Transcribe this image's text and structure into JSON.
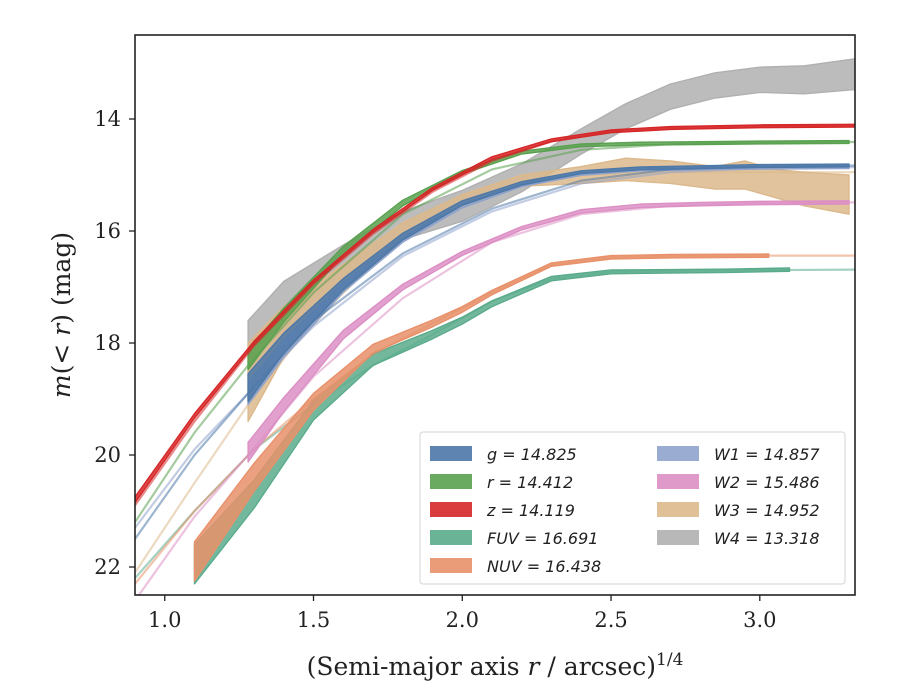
{
  "chart_data": {
    "type": "line",
    "xlabel": "(Semi-major axis r / arcsec)^1/4",
    "xlabel_main": "(Semi-major axis ",
    "xlabel_var": "r",
    "xlabel_rest": " / arcsec)",
    "xlabel_exp": "1/4",
    "ylabel": "m(< r) (mag)",
    "ylabel_m": "m",
    "ylabel_paren_open": "(",
    "ylabel_lt": "< ",
    "ylabel_r": "r",
    "ylabel_paren_close": ")",
    "ylabel_unit": " (mag)",
    "xlim": [
      0.9,
      3.32
    ],
    "ylim": [
      22.5,
      12.5
    ],
    "y_inverted": true,
    "x_ticks": [
      1.0,
      1.5,
      2.0,
      2.5,
      3.0
    ],
    "x_tick_labels": [
      "1.0",
      "1.5",
      "2.0",
      "2.5",
      "3.0"
    ],
    "y_ticks": [
      14,
      16,
      18,
      20,
      22
    ],
    "y_tick_labels": [
      "14",
      "16",
      "18",
      "20",
      "22"
    ],
    "grid": false,
    "legend_position": "lower-right",
    "series": [
      {
        "name": "g",
        "value": "14.825",
        "color": "#4c78a8",
        "x": [
          1.28,
          1.4,
          1.6,
          1.8,
          2.0,
          2.2,
          2.4,
          2.6,
          2.8,
          3.0,
          3.3
        ],
        "y": [
          18.8,
          18.0,
          16.95,
          16.1,
          15.5,
          15.15,
          14.95,
          14.88,
          14.86,
          14.84,
          14.83
        ],
        "width": [
          0.5,
          0.35,
          0.2,
          0.12,
          0.08,
          0.06,
          0.05,
          0.05,
          0.05,
          0.05,
          0.05
        ],
        "model_x": [
          0.9,
          1.1,
          1.28,
          1.5,
          1.8,
          2.1,
          2.4,
          2.7,
          3.0,
          3.32
        ],
        "model_y": [
          21.5,
          20.0,
          18.9,
          17.6,
          16.4,
          15.6,
          15.1,
          14.9,
          14.85,
          14.83
        ]
      },
      {
        "name": "r",
        "value": "14.412",
        "color": "#59a14f",
        "x": [
          1.28,
          1.4,
          1.6,
          1.8,
          2.0,
          2.2,
          2.4,
          2.6,
          2.8,
          3.0,
          3.3
        ],
        "y": [
          18.3,
          17.5,
          16.35,
          15.5,
          14.95,
          14.6,
          14.47,
          14.44,
          14.43,
          14.42,
          14.41
        ],
        "width": [
          0.35,
          0.25,
          0.15,
          0.1,
          0.06,
          0.05,
          0.05,
          0.05,
          0.05,
          0.05,
          0.05
        ],
        "model_x": [
          0.9,
          1.1,
          1.28,
          1.5,
          1.8,
          2.1,
          2.4,
          2.7,
          3.0,
          3.32
        ],
        "model_y": [
          21.2,
          19.6,
          18.4,
          17.1,
          15.7,
          14.9,
          14.55,
          14.45,
          14.42,
          14.41
        ]
      },
      {
        "name": "z",
        "value": "14.119",
        "color": "#d62728",
        "x": [
          0.9,
          1.1,
          1.3,
          1.5,
          1.7,
          1.9,
          2.1,
          2.3,
          2.5,
          2.7,
          3.0,
          3.32
        ],
        "y": [
          20.8,
          19.3,
          18.0,
          16.9,
          16.0,
          15.25,
          14.7,
          14.38,
          14.22,
          14.16,
          14.13,
          14.12
        ],
        "width": [
          0.1,
          0.08,
          0.06,
          0.05,
          0.05,
          0.05,
          0.05,
          0.05,
          0.05,
          0.05,
          0.05,
          0.05
        ],
        "model_x": [
          0.9,
          1.1,
          1.3,
          1.5,
          1.7,
          1.9,
          2.1,
          2.3,
          2.5,
          2.7,
          3.0,
          3.32
        ],
        "model_y": [
          20.9,
          19.4,
          18.05,
          16.95,
          16.05,
          15.3,
          14.75,
          14.4,
          14.23,
          14.16,
          14.13,
          14.12
        ]
      },
      {
        "name": "FUV",
        "value": "16.691",
        "color": "#5aab8c",
        "x": [
          1.1,
          1.3,
          1.5,
          1.7,
          1.9,
          2.0,
          2.1,
          2.3,
          2.5,
          2.7,
          2.9,
          3.1
        ],
        "y": [
          21.95,
          20.7,
          19.2,
          18.3,
          17.85,
          17.6,
          17.3,
          16.85,
          16.73,
          16.72,
          16.71,
          16.69
        ],
        "width": [
          0.7,
          0.5,
          0.35,
          0.2,
          0.15,
          0.12,
          0.1,
          0.08,
          0.07,
          0.06,
          0.06,
          0.06
        ],
        "model_x": [
          0.9,
          1.1,
          1.3,
          1.5,
          1.7,
          1.9,
          2.1,
          2.3,
          2.5,
          2.7,
          3.0,
          3.32
        ],
        "model_y": [
          22.2,
          21.0,
          19.9,
          19.1,
          18.4,
          17.85,
          17.25,
          16.85,
          16.73,
          16.71,
          16.7,
          16.69
        ]
      },
      {
        "name": "NUV",
        "value": "16.438",
        "color": "#e8916a",
        "x": [
          1.1,
          1.3,
          1.5,
          1.7,
          1.9,
          2.0,
          2.1,
          2.3,
          2.5,
          2.7,
          3.03
        ],
        "y": [
          21.9,
          20.4,
          19.05,
          18.1,
          17.65,
          17.4,
          17.1,
          16.6,
          16.47,
          16.45,
          16.44
        ],
        "width": [
          0.7,
          0.5,
          0.3,
          0.15,
          0.12,
          0.1,
          0.08,
          0.06,
          0.06,
          0.06,
          0.06
        ],
        "model_x": [
          0.9,
          1.1,
          1.3,
          1.5,
          1.7,
          1.9,
          2.1,
          2.3,
          2.5,
          2.7,
          3.0,
          3.32
        ],
        "model_y": [
          22.3,
          21.0,
          19.9,
          19.0,
          18.2,
          17.65,
          17.1,
          16.6,
          16.47,
          16.45,
          16.44,
          16.44
        ]
      },
      {
        "name": "W1",
        "value": "14.857",
        "color": "#8fa3cc",
        "x": [
          1.28,
          1.4,
          1.6,
          1.8,
          2.0,
          2.2,
          2.4,
          2.6,
          2.8,
          3.0,
          3.3
        ],
        "y": [
          18.9,
          18.1,
          17.0,
          16.15,
          15.55,
          15.18,
          14.98,
          14.9,
          14.88,
          14.87,
          14.86
        ],
        "width": [
          0.4,
          0.3,
          0.18,
          0.1,
          0.07,
          0.05,
          0.05,
          0.05,
          0.05,
          0.05,
          0.05
        ],
        "model_x": [
          0.9,
          1.1,
          1.28,
          1.5,
          1.8,
          2.1,
          2.4,
          2.7,
          3.0,
          3.32
        ],
        "model_y": [
          21.3,
          19.9,
          18.9,
          17.7,
          16.45,
          15.65,
          15.15,
          14.95,
          14.88,
          14.86
        ]
      },
      {
        "name": "W2",
        "value": "15.486",
        "color": "#dc8fc4",
        "x": [
          1.28,
          1.4,
          1.6,
          1.8,
          2.0,
          2.2,
          2.4,
          2.6,
          2.8,
          3.0,
          3.3
        ],
        "y": [
          19.95,
          19.1,
          17.85,
          17.0,
          16.4,
          15.95,
          15.65,
          15.55,
          15.52,
          15.5,
          15.49
        ],
        "width": [
          0.35,
          0.25,
          0.15,
          0.1,
          0.07,
          0.06,
          0.06,
          0.06,
          0.06,
          0.06,
          0.06
        ],
        "model_x": [
          0.9,
          1.1,
          1.28,
          1.5,
          1.8,
          2.1,
          2.4,
          2.7,
          3.0,
          3.32
        ],
        "model_y": [
          22.6,
          21.1,
          20.0,
          18.6,
          17.2,
          16.2,
          15.7,
          15.55,
          15.5,
          15.49
        ]
      },
      {
        "name": "W3",
        "value": "14.952",
        "color": "#dcb98c",
        "x": [
          1.28,
          1.4,
          1.6,
          1.8,
          2.0,
          2.2,
          2.4,
          2.55,
          2.7,
          2.85,
          2.95,
          3.05,
          3.15,
          3.3
        ],
        "y": [
          18.7,
          17.8,
          16.85,
          16.0,
          15.45,
          15.1,
          15.0,
          14.9,
          14.95,
          15.05,
          15.0,
          15.15,
          15.25,
          15.35
        ],
        "width": [
          1.4,
          0.9,
          0.5,
          0.3,
          0.2,
          0.2,
          0.3,
          0.4,
          0.4,
          0.4,
          0.5,
          0.5,
          0.6,
          0.7
        ],
        "model_x": [
          0.9,
          1.1,
          1.28,
          1.5,
          1.8,
          2.1,
          2.4,
          2.7,
          3.0,
          3.32
        ],
        "model_y": [
          22.1,
          20.5,
          19.1,
          17.6,
          16.1,
          15.3,
          15.0,
          14.95,
          14.95,
          14.95
        ]
      },
      {
        "name": "W4",
        "value": "13.318",
        "color": "#b0b0b0",
        "x": [
          1.28,
          1.4,
          1.6,
          1.8,
          2.0,
          2.2,
          2.4,
          2.55,
          2.7,
          2.85,
          3.0,
          3.15,
          3.32
        ],
        "y": [
          18.3,
          17.4,
          16.55,
          15.9,
          15.55,
          15.05,
          14.4,
          13.95,
          13.6,
          13.4,
          13.3,
          13.3,
          13.2
        ],
        "width": [
          1.4,
          1.0,
          0.6,
          0.5,
          0.55,
          0.5,
          0.45,
          0.45,
          0.45,
          0.45,
          0.45,
          0.5,
          0.55
        ],
        "model_x": [],
        "model_y": []
      }
    ]
  }
}
